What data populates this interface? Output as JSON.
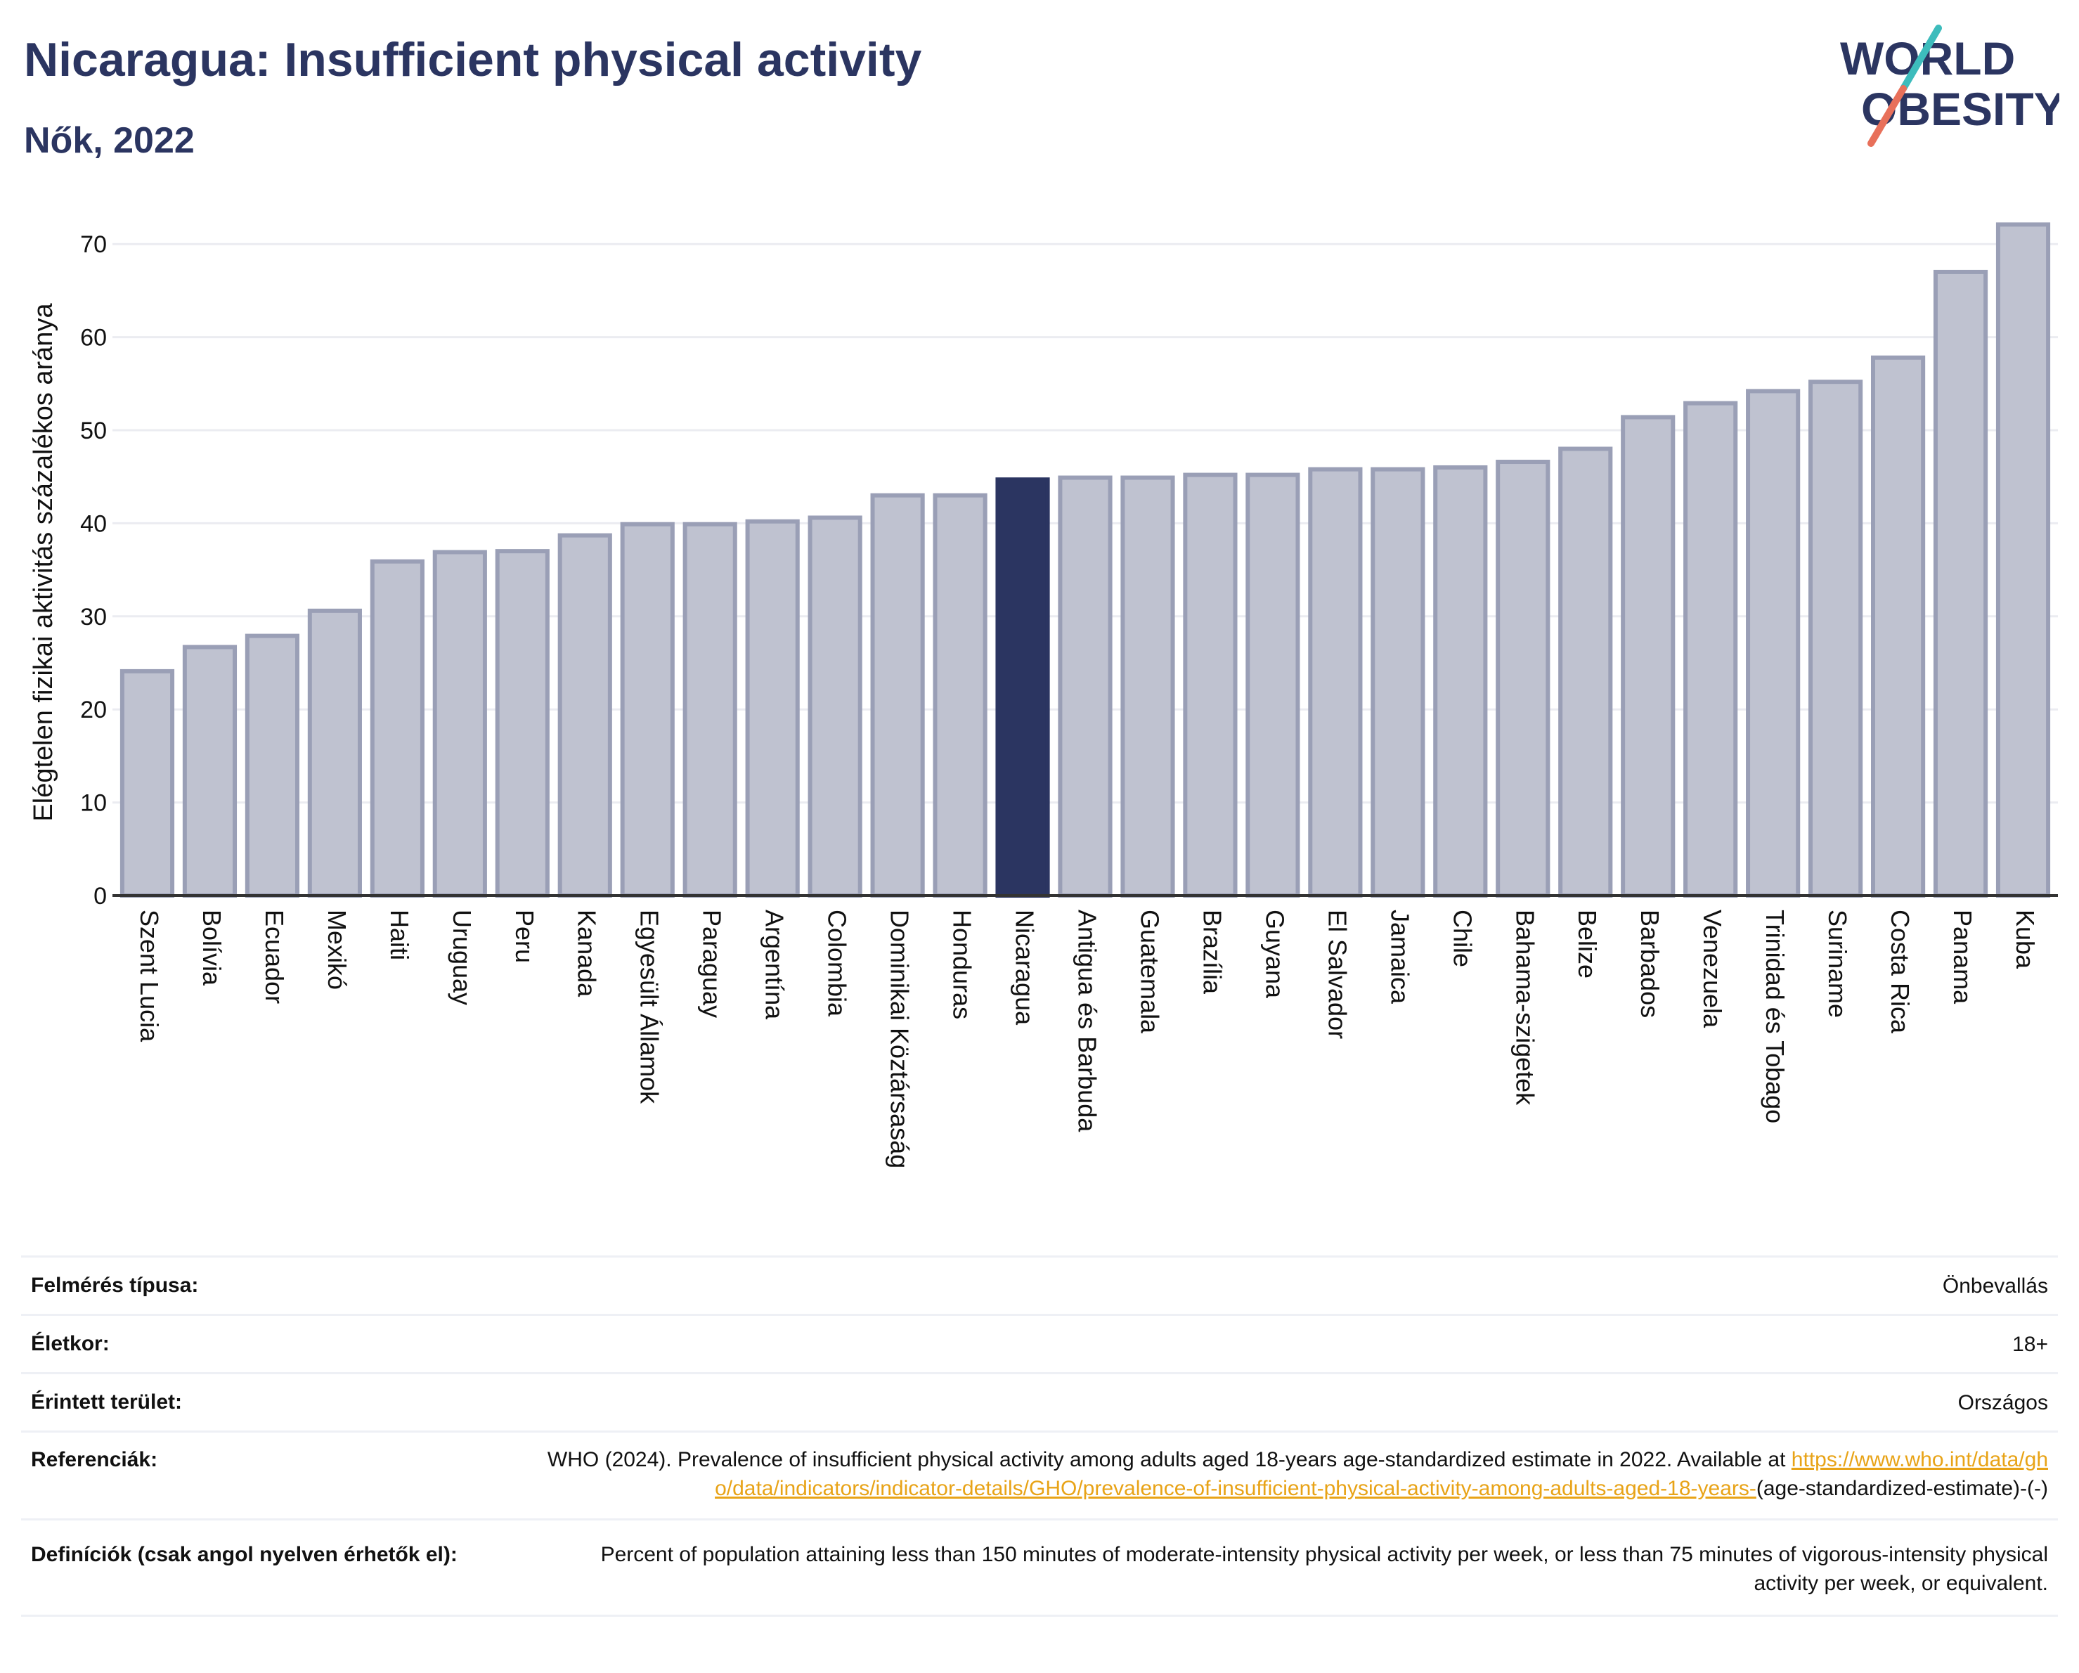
{
  "header": {
    "title": "Nicaragua: Insufficient physical activity",
    "subtitle": "Nők, 2022"
  },
  "logo": {
    "line1": "WORLD",
    "line2": "OBESITY",
    "colors": [
      "#2b3561",
      "#3dbcbc",
      "#e8705a"
    ]
  },
  "colors": {
    "bar": "#bfc2d0",
    "bar_border": "#9a9fb6",
    "highlight": "#2b3561",
    "grid": "#ebecf1",
    "link": "#e8a317"
  },
  "chart_data": {
    "type": "bar",
    "categories": [
      "Szent Lucia",
      "Bolívia",
      "Ecuador",
      "Mexikó",
      "Haiti",
      "Uruguay",
      "Peru",
      "Kanada",
      "Egyesült Államok",
      "Paraguay",
      "Argentína",
      "Colombia",
      "Dominikai Köztársaság",
      "Honduras",
      "Nicaragua",
      "Antigua és Barbuda",
      "Guatemala",
      "Brazília",
      "Guyana",
      "El Salvador",
      "Jamaica",
      "Chile",
      "Bahama-szigetek",
      "Belize",
      "Barbados",
      "Venezuela",
      "Trinidad és Tobago",
      "Suriname",
      "Costa Rica",
      "Panama",
      "Kuba"
    ],
    "values": [
      24.1,
      26.7,
      27.9,
      30.6,
      35.9,
      36.9,
      37.0,
      38.7,
      39.9,
      39.9,
      40.2,
      40.6,
      43.0,
      43.0,
      44.7,
      44.9,
      44.9,
      45.2,
      45.2,
      45.8,
      45.8,
      46.0,
      46.6,
      48.0,
      51.4,
      52.9,
      54.2,
      55.2,
      57.8,
      67.0,
      72.1
    ],
    "highlight": "Nicaragua",
    "ylabel": "Elégtelen fizikai aktivitás százalékos aránya",
    "yticks": [
      0,
      10,
      20,
      30,
      40,
      50,
      60,
      70
    ],
    "ylim": [
      0,
      75
    ],
    "grid": true
  },
  "info": {
    "survey_label": "Felmérés típusa:",
    "survey_value": "Önbevallás",
    "age_label": "Életkor:",
    "age_value": "18+",
    "area_label": "Érintett terület:",
    "area_value": "Országos",
    "ref_label": "Referenciák:",
    "ref_text": "WHO (2024). Prevalence of insufficient physical activity among adults aged 18-years age-standardized estimate in 2022. Available at ",
    "ref_link": "https://www.who.int/data/gho/data/indicators/indicator-details/GHO/prevalence-of-insufficient-physical-activity-among-adults-aged-18-years-",
    "ref_tail": "(age-standardized-estimate)-(-)",
    "def_label": "Definíciók (csak angol nyelven érhetők el):",
    "def_text": "Percent of population attaining less than 150 minutes of moderate-intensity physical activity per week, or less than 75 minutes of vigorous-intensity physical activity per week, or equivalent."
  }
}
